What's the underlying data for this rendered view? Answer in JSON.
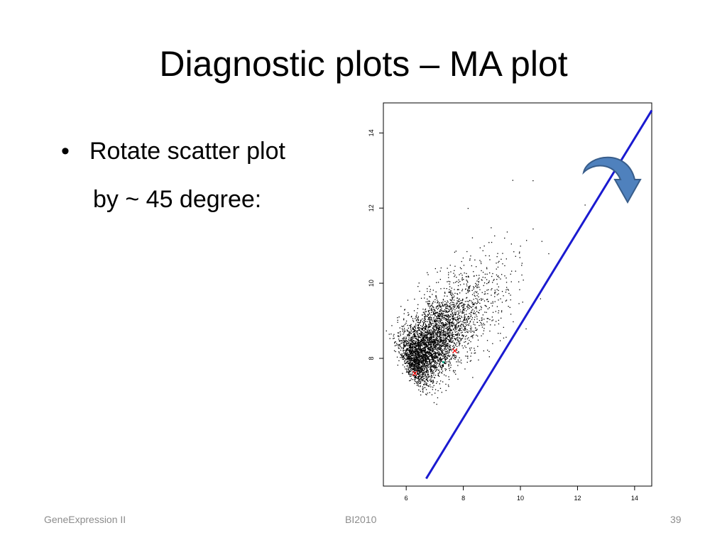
{
  "slide": {
    "title": "Diagnostic plots – MA plot",
    "bullet_marker": "•",
    "bullet_text": "Rotate scatter plot",
    "bullet_continuation": "by ~ 45 degree:"
  },
  "footer": {
    "left": "GeneExpression II",
    "center": "BI2010",
    "right": "39"
  },
  "colors": {
    "points": "#000000",
    "fit_line": "#1a1ad0",
    "arrow_fill": "#4f81bd",
    "arrow_stroke": "#385d8a",
    "markers": "#ff0000",
    "axis": "#000000"
  },
  "icons": [
    "curved-arrow-icon"
  ],
  "chart_data": {
    "type": "scatter",
    "title": "",
    "xlabel": "",
    "ylabel": "",
    "xlim": [
      5.2,
      14.6
    ],
    "ylim": [
      4.6,
      14.8
    ],
    "x_ticks": [
      {
        "value": 6,
        "label": "6"
      },
      {
        "value": 8,
        "label": "8"
      },
      {
        "value": 10,
        "label": "10"
      },
      {
        "value": 12,
        "label": "12"
      },
      {
        "value": 14,
        "label": "14"
      }
    ],
    "y_ticks": [
      {
        "value": 8,
        "label": "8"
      },
      {
        "value": 10,
        "label": "10"
      },
      {
        "value": 12,
        "label": "12"
      },
      {
        "value": 14,
        "label": "14"
      }
    ],
    "grid": false,
    "legend": "none",
    "cloud": {
      "description_points": "dense point cloud, approx. 4000 probes",
      "dense_center": [
        6.1,
        7.8
      ],
      "trend_start": [
        6.1,
        7.8
      ],
      "trend_end": [
        14.1,
        14.2
      ],
      "main_axis_spread_sd": 1.15,
      "perpendicular_spread_sd": 0.38,
      "point_count": 4000
    },
    "fit_line": {
      "x": [
        6.7,
        14.6
      ],
      "y": [
        4.8,
        14.6
      ]
    },
    "highlighted_points": [
      {
        "x": 6.3,
        "y": 7.6,
        "shape": "x",
        "color": "#ff0000"
      },
      {
        "x": 7.7,
        "y": 8.2,
        "shape": "x",
        "color": "#ff0000"
      },
      {
        "x": 7.3,
        "y": 7.9,
        "shape": "dot",
        "color": "#00aa88"
      }
    ]
  }
}
